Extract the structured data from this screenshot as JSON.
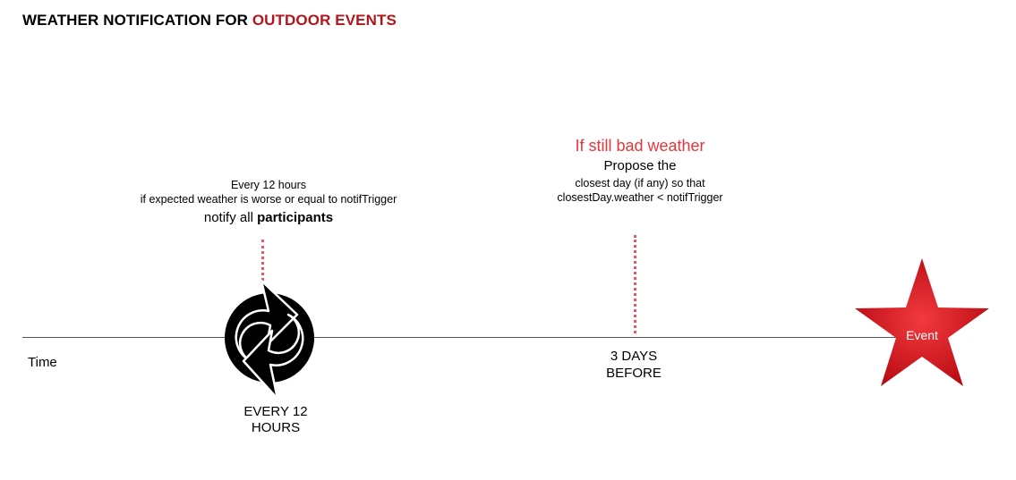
{
  "title": {
    "prefix": "WEATHER NOTIFICATION FOR ",
    "accent": "OUTDOOR EVENTS",
    "accent_color": "#b3151b"
  },
  "axis": {
    "label": "Time"
  },
  "milestone_12h": {
    "line1": "Every 12 hours",
    "line2": "if expected weather is worse or equal to  notifTrigger",
    "line3_prefix": "notify all ",
    "line3_bold": "participants",
    "icon": "refresh-cycle-icon",
    "label_line1": "EVERY 12",
    "label_line2": "HOURS"
  },
  "milestone_3d": {
    "heading": "If still bad weather",
    "heading_color": "#e8353a",
    "line1": "Propose the",
    "line2": "closest day (if any) so that",
    "line3": "closestDay.weather < notifTrigger",
    "label_line1": "3 DAYS",
    "label_line2": "BEFORE"
  },
  "event": {
    "label": "Event",
    "icon": "star-icon",
    "color": "#d8141c"
  }
}
